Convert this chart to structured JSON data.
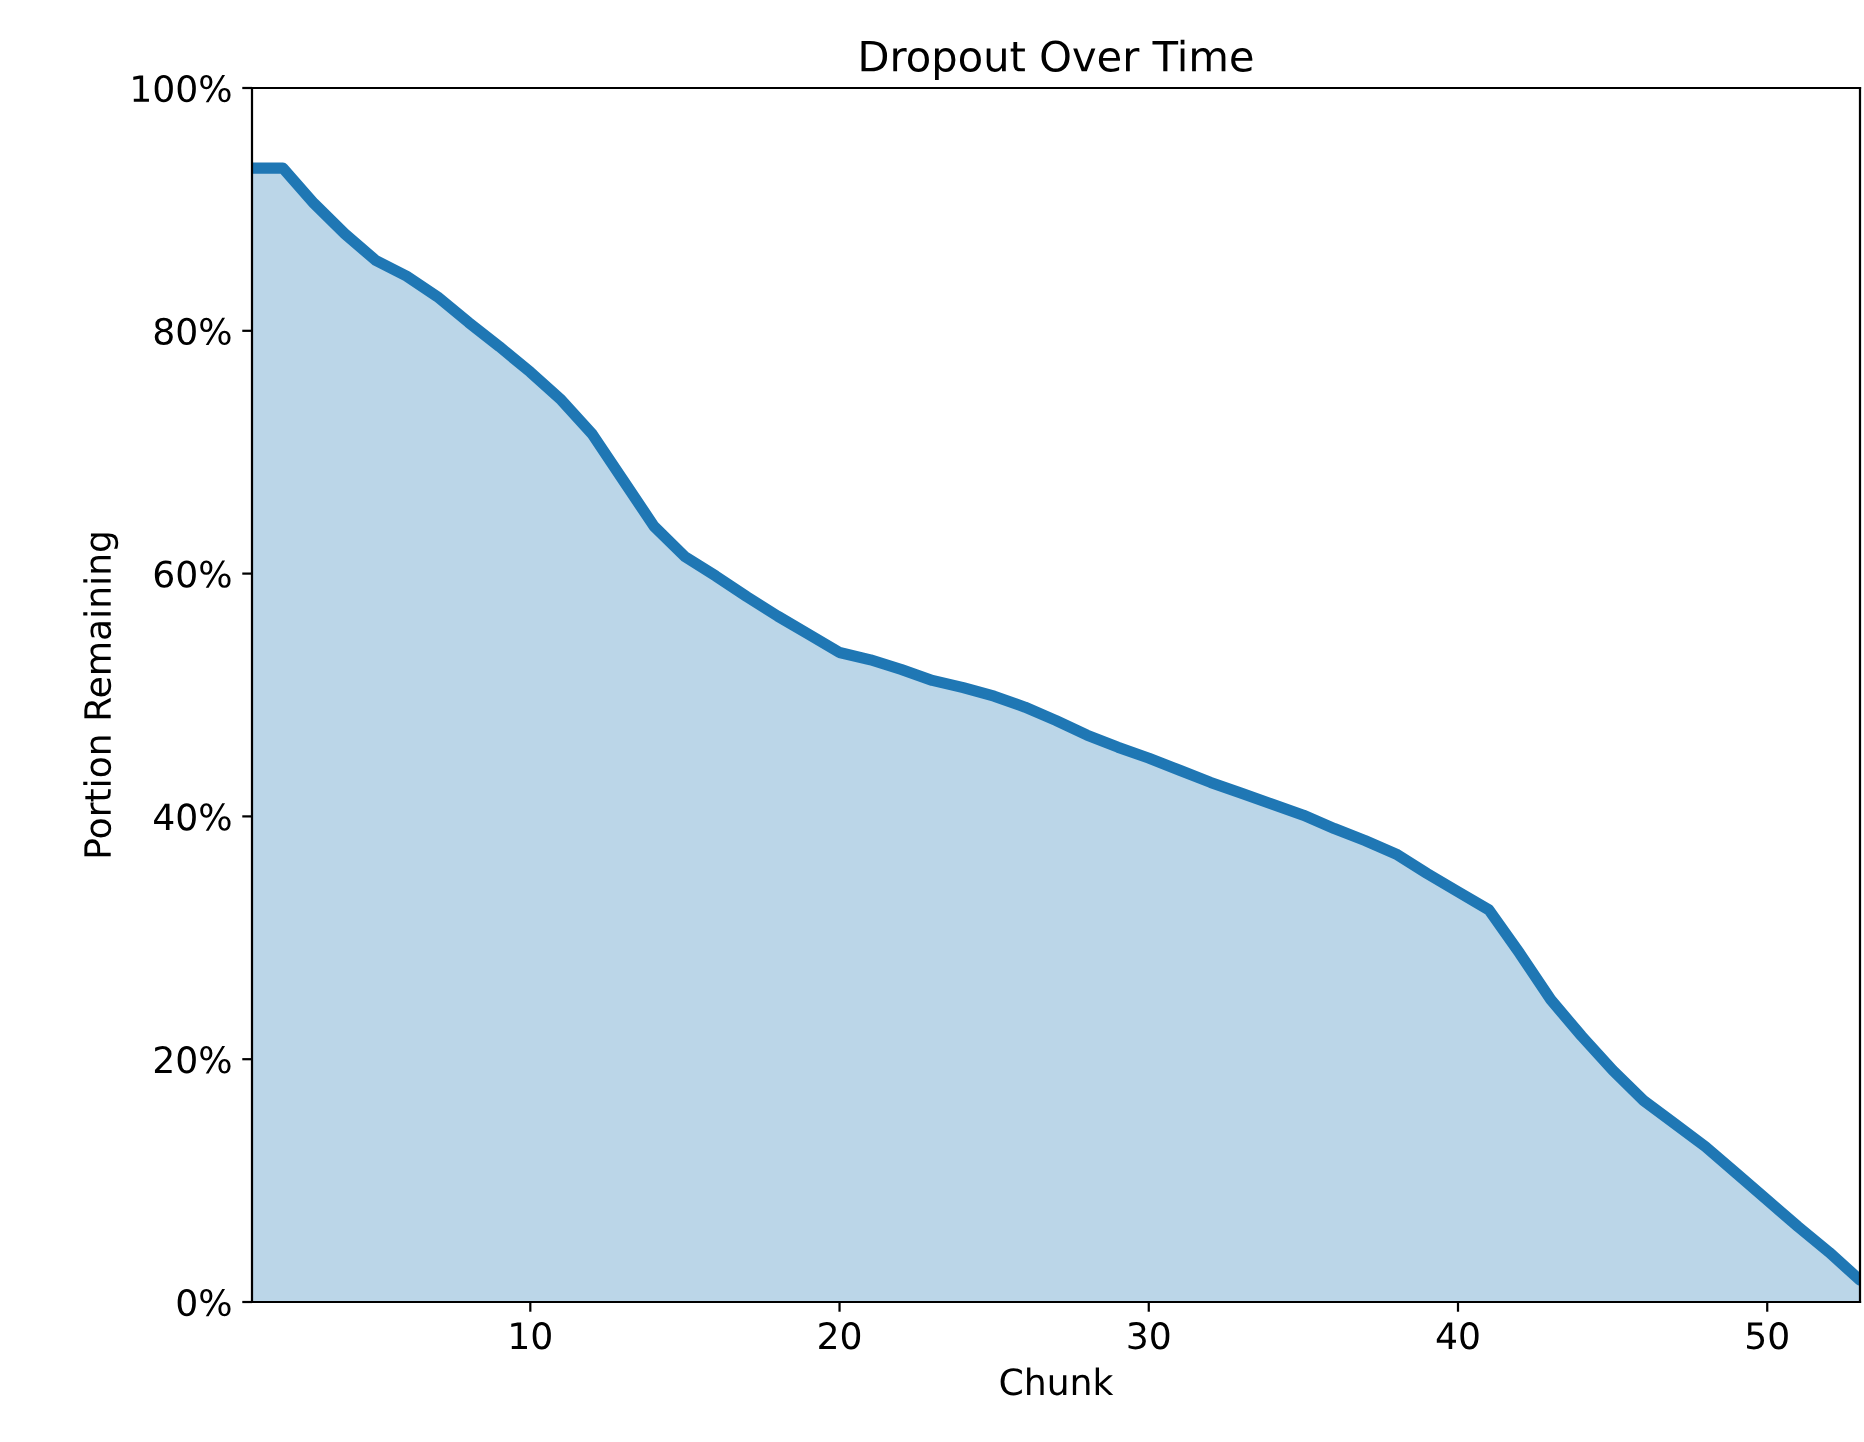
{
  "chart_data": {
    "type": "area",
    "title": "Dropout Over Time",
    "xlabel": "Chunk",
    "ylabel": "Portion Remaining",
    "x": [
      1,
      2,
      3,
      4,
      5,
      6,
      7,
      8,
      9,
      10,
      11,
      12,
      13,
      14,
      15,
      16,
      17,
      18,
      19,
      20,
      21,
      22,
      23,
      24,
      25,
      26,
      27,
      28,
      29,
      30,
      31,
      32,
      33,
      34,
      35,
      36,
      37,
      38,
      39,
      40,
      41,
      42,
      43,
      44,
      45,
      46,
      47,
      48,
      49,
      50,
      51,
      52,
      53
    ],
    "series": [
      {
        "color": "#1f77b4",
        "values": [
          93.4,
          93.4,
          90.5,
          88.0,
          85.8,
          84.5,
          82.8,
          80.7,
          78.7,
          76.6,
          74.3,
          71.5,
          67.7,
          63.9,
          61.4,
          59.8,
          58.1,
          56.5,
          55.0,
          53.5,
          52.9,
          52.1,
          51.2,
          50.6,
          49.9,
          49.0,
          47.9,
          46.7,
          45.7,
          44.8,
          43.8,
          42.8,
          41.9,
          41.0,
          40.1,
          39.0,
          38.0,
          36.9,
          35.3,
          33.8,
          32.3,
          28.7,
          24.9,
          21.9,
          19.1,
          16.6,
          14.7,
          12.8,
          10.6,
          8.4,
          6.2,
          4.1,
          1.8
        ]
      }
    ],
    "xlim": [
      1,
      53
    ],
    "xticks": [
      10,
      20,
      30,
      40,
      50
    ],
    "ylim": [
      0,
      100
    ],
    "yticks": [
      {
        "value": 0,
        "label": "0%"
      },
      {
        "value": 20,
        "label": "20%"
      },
      {
        "value": 40,
        "label": "40%"
      },
      {
        "value": 60,
        "label": "60%"
      },
      {
        "value": 80,
        "label": "80%"
      },
      {
        "value": 100,
        "label": "100%"
      }
    ],
    "grid": false,
    "legend": false
  }
}
